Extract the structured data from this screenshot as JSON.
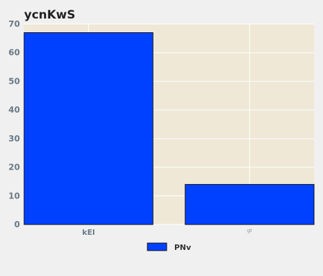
{
  "chart_data": {
    "type": "bar",
    "title": "ycnKwS",
    "categories": [
      "kEl",
      "gt"
    ],
    "series": [
      {
        "name": "PNv",
        "values": [
          67,
          14
        ],
        "color": "#0040ff"
      }
    ],
    "ylim": [
      0,
      70
    ],
    "yticks": [
      "0",
      "10",
      "20",
      "30",
      "40",
      "50",
      "60",
      "70"
    ],
    "grid": true,
    "legend_position": "bottom-center",
    "plot_background": "#efe8d6",
    "figure_background": "#f0f0f0"
  }
}
